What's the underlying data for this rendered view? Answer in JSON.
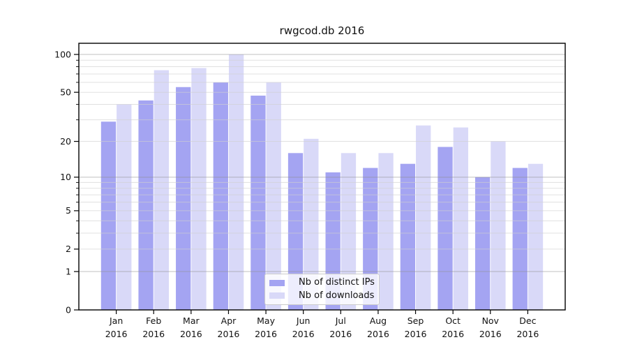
{
  "chart_data": {
    "type": "bar",
    "title": "rwgcod.db 2016",
    "categories": [
      "Jan",
      "Feb",
      "Mar",
      "Apr",
      "May",
      "Jun",
      "Jul",
      "Aug",
      "Sep",
      "Oct",
      "Nov",
      "Dec"
    ],
    "x_tick_year_line": "2016",
    "series": [
      {
        "name": "Nb of distinct IPs",
        "color": "#a4a4f2",
        "values": [
          29,
          43,
          55,
          60,
          47,
          16,
          11,
          12,
          13,
          18,
          10,
          12
        ]
      },
      {
        "name": "Nb of downloads",
        "color": "#d9d9f8",
        "values": [
          40,
          75,
          78,
          100,
          60,
          21,
          16,
          16,
          27,
          26,
          20,
          13
        ]
      }
    ],
    "yscale": "log1p",
    "yticks": [
      0,
      1,
      2,
      5,
      10,
      20,
      50,
      100
    ],
    "ylim": [
      0,
      122
    ],
    "grid": true,
    "legend_position": "lower-center-inside",
    "xlabel": "",
    "ylabel": ""
  }
}
